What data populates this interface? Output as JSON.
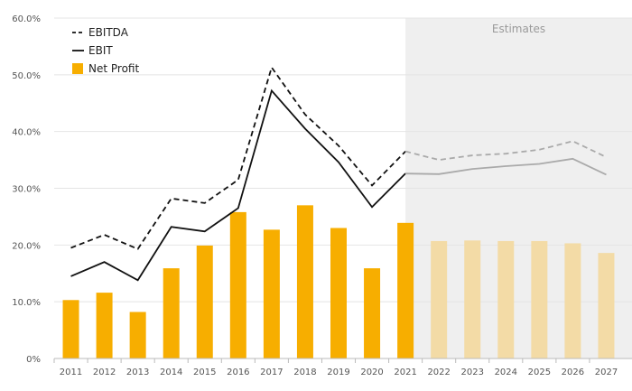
{
  "chart_data": {
    "type": "bar",
    "categories": [
      "2011",
      "2012",
      "2013",
      "2014",
      "2015",
      "2016",
      "2017",
      "2018",
      "2019",
      "2020",
      "2021",
      "2022",
      "2023",
      "2024",
      "2025",
      "2026",
      "2027"
    ],
    "ylim": [
      0,
      60
    ],
    "y_ticks": [
      0,
      10,
      20,
      30,
      40,
      50,
      60
    ],
    "y_tick_labels": [
      "0%",
      "10.0%",
      "20.0%",
      "30.0%",
      "40.0%",
      "50.0%",
      "60.0%"
    ],
    "grid": true,
    "legend_position": "top-left",
    "estimates": {
      "label": "Estimates",
      "from_category": "2022",
      "shade_color": "#efefef"
    },
    "series": [
      {
        "name": "EBITDA",
        "kind": "line",
        "style": "dashed",
        "color": "#111111",
        "estimate_color": "#aaaaaa",
        "values": [
          19.5,
          21.8,
          19.3,
          28.2,
          27.4,
          31.5,
          51.3,
          43.0,
          37.5,
          30.5,
          36.5,
          35.0,
          35.8,
          36.1,
          36.8,
          38.3,
          35.5
        ]
      },
      {
        "name": "EBIT",
        "kind": "line",
        "style": "solid",
        "color": "#111111",
        "estimate_color": "#aaaaaa",
        "values": [
          14.5,
          17.0,
          13.8,
          23.2,
          22.4,
          26.5,
          47.2,
          40.5,
          34.6,
          26.7,
          32.6,
          32.5,
          33.4,
          33.9,
          34.3,
          35.2,
          32.4
        ]
      },
      {
        "name": "Net Profit",
        "kind": "bar",
        "color": "#f7ae00",
        "estimate_color": "#f3dba6",
        "values": [
          10.3,
          11.6,
          8.2,
          15.9,
          19.9,
          25.8,
          22.7,
          27.0,
          23.0,
          15.9,
          23.9,
          20.7,
          20.8,
          20.7,
          20.7,
          20.3,
          18.6
        ]
      }
    ]
  }
}
